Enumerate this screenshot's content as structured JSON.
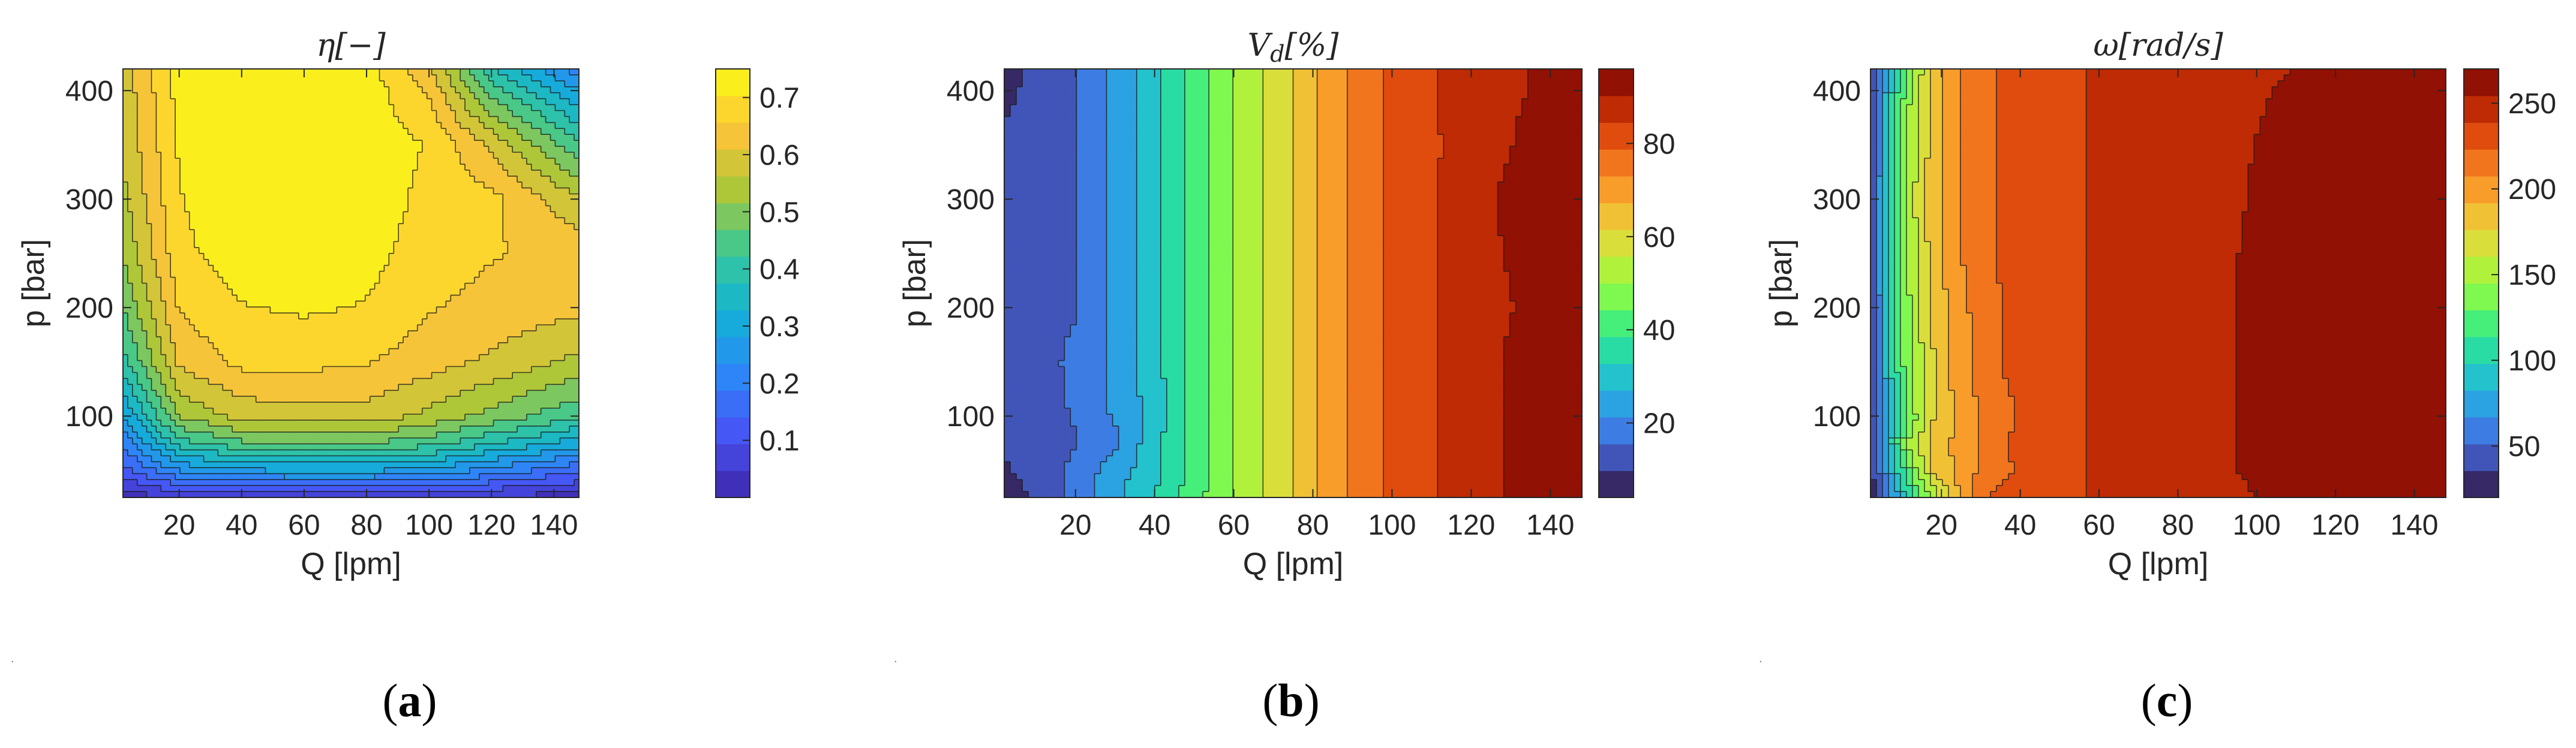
{
  "chart_data": [
    {
      "type": "heatmap",
      "style": "filled-contour",
      "title": "η[−]",
      "caption": "a",
      "xlabel": "Q [lpm]",
      "ylabel": "p [bar]",
      "xlim": [
        2,
        148
      ],
      "ylim": [
        25,
        420
      ],
      "xticks": [
        20,
        40,
        60,
        80,
        100,
        120,
        140
      ],
      "yticks": [
        100,
        200,
        300,
        400
      ],
      "colormap": "parula",
      "colorbar": {
        "ticks": [
          0.1,
          0.2,
          0.3,
          0.4,
          0.5,
          0.6,
          0.7
        ],
        "clim": [
          0.0,
          0.75
        ]
      },
      "x": [
        2,
        20,
        40,
        60,
        80,
        100,
        120,
        148
      ],
      "y": [
        25,
        50,
        75,
        100,
        150,
        200,
        250,
        300,
        350,
        400,
        420
      ],
      "z": [
        [
          0.02,
          0.05,
          0.06,
          0.06,
          0.06,
          0.05,
          0.04,
          0.02
        ],
        [
          0.12,
          0.24,
          0.28,
          0.29,
          0.29,
          0.27,
          0.22,
          0.15
        ],
        [
          0.2,
          0.4,
          0.46,
          0.47,
          0.47,
          0.44,
          0.38,
          0.3
        ],
        [
          0.28,
          0.52,
          0.58,
          0.59,
          0.59,
          0.55,
          0.5,
          0.43
        ],
        [
          0.4,
          0.62,
          0.67,
          0.67,
          0.66,
          0.63,
          0.6,
          0.55
        ],
        [
          0.47,
          0.66,
          0.7,
          0.71,
          0.7,
          0.66,
          0.64,
          0.62
        ],
        [
          0.52,
          0.69,
          0.73,
          0.74,
          0.72,
          0.68,
          0.66,
          0.64
        ],
        [
          0.55,
          0.7,
          0.75,
          0.75,
          0.73,
          0.69,
          0.67,
          0.57
        ],
        [
          0.57,
          0.71,
          0.75,
          0.75,
          0.73,
          0.7,
          0.6,
          0.43
        ],
        [
          0.58,
          0.72,
          0.75,
          0.75,
          0.73,
          0.65,
          0.45,
          0.28
        ],
        [
          0.58,
          0.72,
          0.75,
          0.75,
          0.72,
          0.62,
          0.38,
          0.2
        ]
      ]
    },
    {
      "type": "heatmap",
      "style": "filled-contour",
      "title": "V_d[%]",
      "caption": "b",
      "xlabel": "Q [lpm]",
      "ylabel": "p [bar]",
      "xlim": [
        2,
        148
      ],
      "ylim": [
        25,
        420
      ],
      "xticks": [
        20,
        40,
        60,
        80,
        100,
        120,
        140
      ],
      "yticks": [
        100,
        200,
        300,
        400
      ],
      "colormap": "turbo",
      "colorbar": {
        "ticks": [
          20,
          40,
          60,
          80
        ],
        "clim": [
          4,
          96
        ]
      },
      "x": [
        2,
        10,
        20,
        30,
        40,
        50,
        60,
        70,
        80,
        90,
        100,
        110,
        120,
        130,
        140,
        148
      ],
      "y": [
        25,
        50,
        75,
        100,
        150,
        200,
        250,
        300,
        350,
        400,
        420
      ],
      "z": [
        [
          6,
          11,
          18,
          26,
          33,
          42,
          50,
          58,
          66,
          74,
          80,
          84,
          88,
          91,
          94,
          96
        ],
        [
          9,
          12,
          17,
          24,
          31,
          41,
          50,
          58,
          66,
          74,
          80,
          84,
          88,
          91,
          94,
          95
        ],
        [
          11,
          13,
          15,
          20,
          31,
          41,
          50,
          58,
          66,
          74,
          80,
          84,
          88,
          91,
          94,
          95
        ],
        [
          12,
          13,
          16,
          22,
          29,
          41,
          50,
          58,
          66,
          74,
          80,
          84,
          88,
          91,
          94,
          95
        ],
        [
          12,
          13,
          17,
          23,
          31,
          41,
          50,
          58,
          66,
          74,
          80,
          84,
          88,
          91,
          93,
          95
        ],
        [
          12,
          13,
          15,
          23,
          31,
          41,
          50,
          58,
          66,
          74,
          80,
          84,
          87,
          90,
          93,
          95
        ],
        [
          12,
          13,
          15,
          23,
          31,
          41,
          50,
          58,
          66,
          74,
          80,
          84,
          87,
          91,
          94,
          96
        ],
        [
          12,
          13,
          15,
          23,
          31,
          41,
          50,
          58,
          66,
          74,
          80,
          84,
          87,
          92,
          95,
          97
        ],
        [
          11,
          13,
          15,
          23,
          31,
          41,
          50,
          58,
          66,
          74,
          80,
          84,
          86,
          90,
          95,
          96
        ],
        [
          8,
          12,
          15,
          23,
          31,
          41,
          50,
          58,
          66,
          74,
          80,
          84,
          87,
          89,
          92,
          94
        ],
        [
          6,
          12,
          15,
          23,
          31,
          41,
          50,
          58,
          66,
          74,
          80,
          84,
          87,
          89,
          92,
          94
        ]
      ]
    },
    {
      "type": "heatmap",
      "style": "filled-contour",
      "title": "ω[rad/s]",
      "caption": "c",
      "xlabel": "Q [lpm]",
      "ylabel": "p [bar]",
      "xlim": [
        2,
        148
      ],
      "ylim": [
        25,
        420
      ],
      "xticks": [
        20,
        40,
        60,
        80,
        100,
        120,
        140
      ],
      "yticks": [
        100,
        200,
        300,
        400
      ],
      "colormap": "turbo",
      "colorbar": {
        "ticks": [
          50,
          100,
          150,
          200,
          250
        ],
        "clim": [
          20,
          270
        ]
      },
      "x": [
        2,
        6,
        12,
        18,
        24,
        30,
        36,
        42,
        50,
        60,
        80,
        100,
        110,
        130,
        148
      ],
      "y": [
        25,
        50,
        75,
        100,
        150,
        200,
        250,
        300,
        350,
        400,
        420
      ],
      "z": [
        [
          25,
          55,
          105,
          150,
          190,
          220,
          230,
          232,
          235,
          240,
          240,
          255,
          260,
          260,
          260
        ],
        [
          30,
          70,
          130,
          180,
          195,
          210,
          220,
          228,
          235,
          240,
          242,
          258,
          262,
          262,
          262
        ],
        [
          35,
          85,
          150,
          185,
          195,
          208,
          222,
          230,
          235,
          240,
          242,
          258,
          262,
          263,
          263
        ],
        [
          28,
          75,
          135,
          175,
          195,
          210,
          218,
          228,
          235,
          240,
          242,
          258,
          262,
          263,
          263
        ],
        [
          35,
          90,
          145,
          175,
          200,
          212,
          225,
          230,
          235,
          240,
          242,
          258,
          262,
          263,
          263
        ],
        [
          35,
          90,
          145,
          180,
          200,
          215,
          225,
          230,
          235,
          240,
          242,
          258,
          262,
          263,
          263
        ],
        [
          35,
          95,
          150,
          185,
          205,
          218,
          225,
          230,
          235,
          240,
          242,
          258,
          262,
          262,
          262
        ],
        [
          35,
          95,
          155,
          185,
          205,
          220,
          225,
          230,
          235,
          240,
          242,
          256,
          262,
          262,
          260
        ],
        [
          30,
          90,
          150,
          185,
          205,
          220,
          225,
          230,
          235,
          240,
          242,
          255,
          260,
          262,
          262
        ],
        [
          28,
          85,
          145,
          182,
          205,
          220,
          225,
          230,
          235,
          240,
          242,
          252,
          258,
          262,
          268
        ],
        [
          25,
          80,
          140,
          180,
          205,
          220,
          225,
          230,
          235,
          240,
          242,
          250,
          255,
          262,
          268
        ]
      ]
    }
  ]
}
